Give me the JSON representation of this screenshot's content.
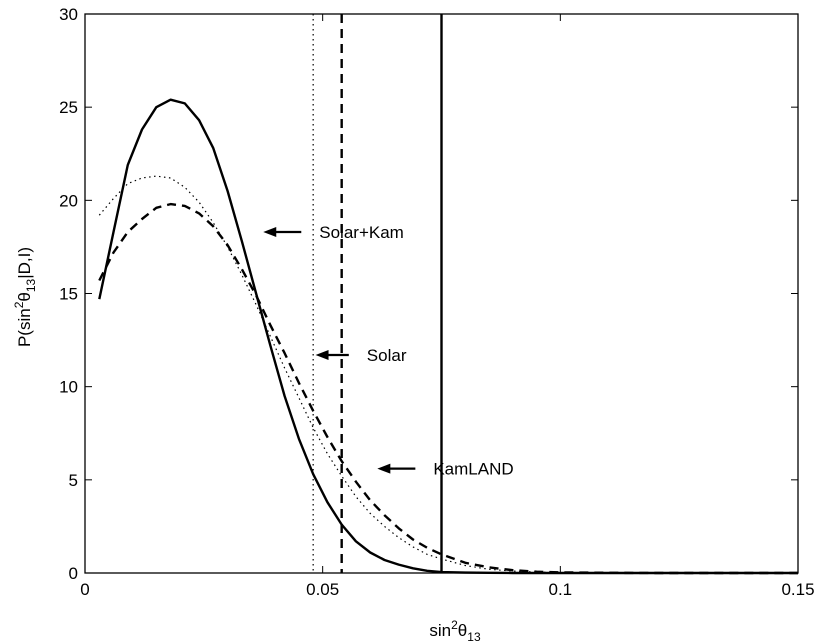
{
  "chart_data": {
    "type": "line",
    "xlabel": {
      "base": "sin",
      "sup": "2",
      "theta": "θ",
      "sub": "13"
    },
    "ylabel": {
      "prefix": "P(sin",
      "sup": "2",
      "theta": "θ",
      "sub": "13",
      "suffix": "|D,I)"
    },
    "xlim": [
      0,
      0.15
    ],
    "ylim": [
      0,
      30
    ],
    "xticks": [
      0,
      0.05,
      0.1,
      0.15
    ],
    "xtick_labels": [
      "0",
      "0.05",
      "0.1",
      "0.15"
    ],
    "yticks": [
      0,
      5,
      10,
      15,
      20,
      25,
      30
    ],
    "ytick_labels": [
      "0",
      "5",
      "10",
      "15",
      "20",
      "25",
      "30"
    ],
    "grid": false,
    "series": [
      {
        "style": "solid",
        "x": [
          0.003,
          0.006,
          0.009,
          0.012,
          0.015,
          0.018,
          0.021,
          0.024,
          0.027,
          0.03,
          0.033,
          0.036,
          0.039,
          0.042,
          0.045,
          0.048,
          0.051,
          0.054,
          0.057,
          0.06,
          0.063,
          0.066,
          0.069,
          0.072,
          0.075,
          0.08,
          0.085,
          0.09,
          0.1,
          0.11,
          0.12,
          0.13,
          0.14,
          0.15
        ],
        "y": [
          14.7,
          18.3,
          21.9,
          23.8,
          25.0,
          25.4,
          25.2,
          24.3,
          22.8,
          20.5,
          17.8,
          15.0,
          12.2,
          9.5,
          7.2,
          5.3,
          3.8,
          2.6,
          1.7,
          1.1,
          0.7,
          0.45,
          0.25,
          0.12,
          0.05,
          0.02,
          0.01,
          0,
          0,
          0,
          0,
          0,
          0,
          0
        ]
      },
      {
        "style": "dashed",
        "x": [
          0.003,
          0.006,
          0.009,
          0.012,
          0.015,
          0.018,
          0.021,
          0.024,
          0.027,
          0.03,
          0.033,
          0.036,
          0.039,
          0.042,
          0.045,
          0.048,
          0.051,
          0.054,
          0.057,
          0.06,
          0.063,
          0.066,
          0.069,
          0.072,
          0.075,
          0.08,
          0.085,
          0.09,
          0.095,
          0.1,
          0.11,
          0.12,
          0.13,
          0.14,
          0.15
        ],
        "y": [
          15.7,
          17.2,
          18.3,
          19.0,
          19.6,
          19.8,
          19.7,
          19.3,
          18.6,
          17.6,
          16.3,
          14.9,
          13.3,
          11.8,
          10.2,
          8.7,
          7.3,
          6.0,
          4.9,
          3.9,
          3.1,
          2.4,
          1.8,
          1.35,
          1.0,
          0.55,
          0.3,
          0.15,
          0.07,
          0.03,
          0.01,
          0,
          0,
          0,
          0
        ]
      },
      {
        "style": "dotted",
        "x": [
          0.003,
          0.006,
          0.009,
          0.012,
          0.015,
          0.018,
          0.021,
          0.024,
          0.027,
          0.03,
          0.033,
          0.036,
          0.039,
          0.042,
          0.045,
          0.048,
          0.051,
          0.054,
          0.057,
          0.06,
          0.063,
          0.066,
          0.069,
          0.072,
          0.075,
          0.08,
          0.085,
          0.09,
          0.095,
          0.1,
          0.11,
          0.12,
          0.13,
          0.14,
          0.15
        ],
        "y": [
          19.2,
          20.1,
          20.9,
          21.2,
          21.3,
          21.2,
          20.7,
          19.9,
          18.8,
          17.5,
          16.0,
          14.4,
          12.7,
          11.0,
          9.4,
          7.8,
          6.4,
          5.2,
          4.1,
          3.2,
          2.5,
          1.9,
          1.4,
          1.0,
          0.75,
          0.4,
          0.2,
          0.1,
          0.05,
          0.02,
          0.01,
          0,
          0,
          0,
          0
        ]
      }
    ],
    "vertical_lines": [
      {
        "x": 0.048,
        "style": "dotted"
      },
      {
        "x": 0.054,
        "style": "dashed"
      },
      {
        "x": 0.075,
        "style": "solid"
      }
    ],
    "annotations": [
      {
        "text": "Solar+Kam",
        "arrow_to": [
          0.0375,
          18.3
        ],
        "arrow_from": [
          0.0455,
          18.3
        ]
      },
      {
        "text": "Solar",
        "arrow_to": [
          0.0485,
          11.7
        ],
        "arrow_from": [
          0.0555,
          11.7
        ]
      },
      {
        "text": "KamLAND",
        "arrow_to": [
          0.0615,
          5.6
        ],
        "arrow_from": [
          0.0695,
          5.6
        ]
      }
    ]
  }
}
